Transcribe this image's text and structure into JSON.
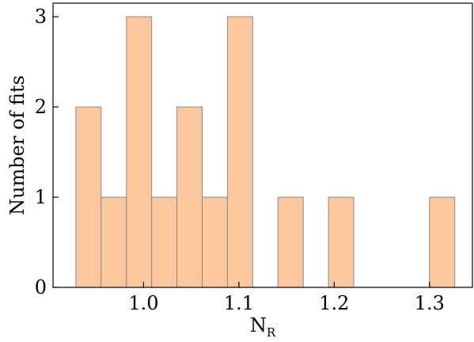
{
  "chart_data": {
    "type": "bar",
    "xlabel": "N",
    "xlabel_subscript": "R",
    "ylabel": "Number of fits",
    "xlim": [
      0.905,
      1.345
    ],
    "ylim": [
      0,
      3.15
    ],
    "bin_width": 0.0265,
    "bins": [
      {
        "x0": 0.929,
        "x1": 0.9555,
        "count": 2
      },
      {
        "x0": 0.9555,
        "x1": 0.982,
        "count": 1
      },
      {
        "x0": 0.982,
        "x1": 1.0085,
        "count": 3
      },
      {
        "x0": 1.0085,
        "x1": 1.035,
        "count": 1
      },
      {
        "x0": 1.035,
        "x1": 1.0615,
        "count": 2
      },
      {
        "x0": 1.0615,
        "x1": 1.088,
        "count": 1
      },
      {
        "x0": 1.088,
        "x1": 1.1145,
        "count": 3
      },
      {
        "x0": 1.1145,
        "x1": 1.141,
        "count": 0
      },
      {
        "x0": 1.141,
        "x1": 1.1675,
        "count": 1
      },
      {
        "x0": 1.1675,
        "x1": 1.194,
        "count": 0
      },
      {
        "x0": 1.194,
        "x1": 1.2205,
        "count": 1
      },
      {
        "x0": 1.2205,
        "x1": 1.247,
        "count": 0
      },
      {
        "x0": 1.247,
        "x1": 1.2735,
        "count": 0
      },
      {
        "x0": 1.2735,
        "x1": 1.3,
        "count": 0
      },
      {
        "x0": 1.3,
        "x1": 1.3265,
        "count": 1
      }
    ],
    "xticks": [
      {
        "value": 1.0,
        "label": "1.0"
      },
      {
        "value": 1.1,
        "label": "1.1"
      },
      {
        "value": 1.2,
        "label": "1.2"
      },
      {
        "value": 1.3,
        "label": "1.3"
      }
    ],
    "yticks": [
      {
        "value": 0,
        "label": "0"
      },
      {
        "value": 1,
        "label": "1"
      },
      {
        "value": 2,
        "label": "2"
      },
      {
        "value": 3,
        "label": "3"
      }
    ],
    "bar_fill": "#fdc89d",
    "bar_edge": "#8a8a8a",
    "grid": false,
    "tick_direction": "in"
  }
}
